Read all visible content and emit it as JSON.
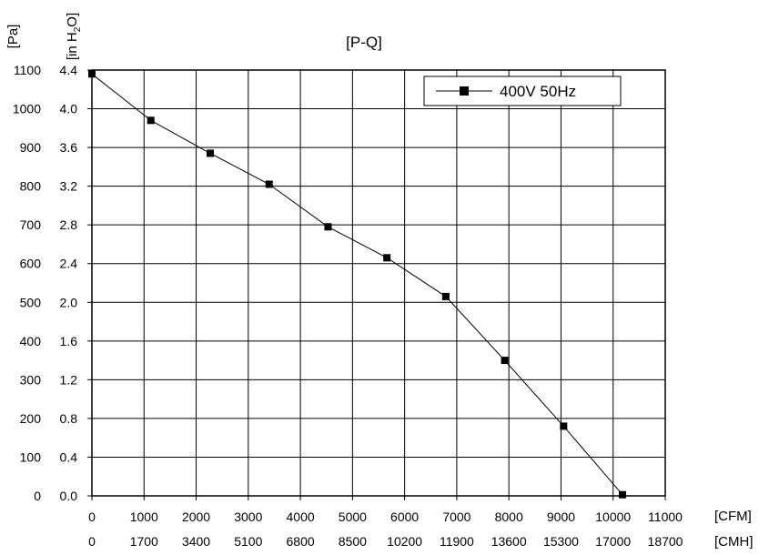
{
  "chart_data": {
    "type": "line",
    "title": "[P-Q]",
    "y_units": [
      "[Pa]",
      "[in H2O]"
    ],
    "x_units": [
      "[CFM]",
      "[CMH]"
    ],
    "x_ticks_cfm": [
      "0",
      "1000",
      "2000",
      "3000",
      "4000",
      "5000",
      "6000",
      "7000",
      "8000",
      "9000",
      "10000",
      "11000"
    ],
    "x_ticks_cmh": [
      "0",
      "1700",
      "3400",
      "5100",
      "6800",
      "8500",
      "10200",
      "11900",
      "13600",
      "15300",
      "17000",
      "18700"
    ],
    "y_ticks_pa": [
      "0",
      "100",
      "200",
      "300",
      "400",
      "500",
      "600",
      "700",
      "800",
      "900",
      "1000",
      "1100"
    ],
    "y_ticks_inh2o": [
      "0.0",
      "0.4",
      "0.8",
      "1.2",
      "1.6",
      "2.0",
      "2.4",
      "2.8",
      "3.2",
      "3.6",
      "4.0",
      "4.4"
    ],
    "xlim": [
      0,
      11000
    ],
    "ylim": [
      0,
      1100
    ],
    "grid": true,
    "legend_position": "top-right",
    "series": [
      {
        "name": "400V 50Hz",
        "color": "#000000",
        "marker": "square",
        "x": [
          0,
          1130,
          2270,
          3400,
          4530,
          5660,
          6790,
          7920,
          9050,
          10180
        ],
        "y": [
          1090,
          970,
          885,
          805,
          695,
          615,
          515,
          350,
          180,
          3
        ]
      }
    ]
  }
}
